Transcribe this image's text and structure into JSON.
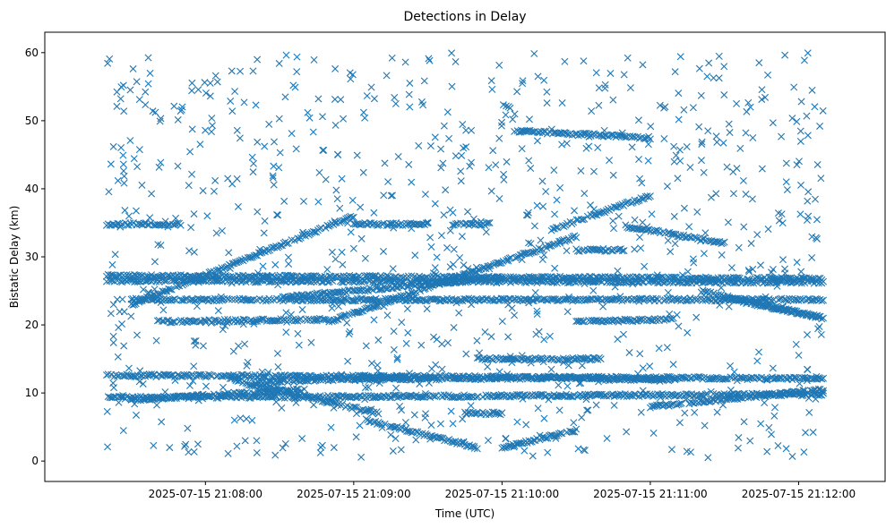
{
  "chart_data": {
    "type": "scatter",
    "title": "Detections in Delay",
    "xlabel": "Time (UTC)",
    "ylabel": "Bistatic Delay (km)",
    "marker": "x",
    "color": "#1f77b4",
    "grid": false,
    "legend": "none",
    "x_start": "2025-07-15 21:07:20",
    "x_end": "2025-07-15 21:12:10",
    "xlim": [
      "2025-07-15 21:06:55",
      "2025-07-15 21:12:35"
    ],
    "ylim": [
      -3,
      63
    ],
    "x_ticks": [
      {
        "label": "2025-07-15 21:08:00"
      },
      {
        "label": "2025-07-15 21:09:00"
      },
      {
        "label": "2025-07-15 21:10:00"
      },
      {
        "label": "2025-07-15 21:11:00"
      },
      {
        "label": "2025-07-15 21:12:00"
      }
    ],
    "y_ticks": [
      {
        "value": 0,
        "label": "0"
      },
      {
        "value": 10,
        "label": "10"
      },
      {
        "value": 20,
        "label": "20"
      },
      {
        "value": 30,
        "label": "30"
      },
      {
        "value": 40,
        "label": "40"
      },
      {
        "value": 50,
        "label": "50"
      },
      {
        "value": 60,
        "label": "60"
      }
    ],
    "series": [
      {
        "description": "track",
        "x": [
          "2025-07-15 21:07:20",
          "2025-07-15 21:12:10"
        ],
        "y": [
          27.2,
          26.8
        ]
      },
      {
        "description": "track",
        "x": [
          "2025-07-15 21:07:20",
          "2025-07-15 21:12:10"
        ],
        "y": [
          26.5,
          26.3
        ]
      },
      {
        "description": "track",
        "x": [
          "2025-07-15 21:07:20",
          "2025-07-15 21:12:10"
        ],
        "y": [
          12.6,
          12.1
        ]
      },
      {
        "description": "track",
        "x": [
          "2025-07-15 21:07:20",
          "2025-07-15 21:12:10"
        ],
        "y": [
          9.3,
          9.8
        ]
      },
      {
        "description": "track",
        "x": [
          "2025-07-15 21:07:30",
          "2025-07-15 21:09:00"
        ],
        "y": [
          23.0,
          36.0
        ]
      },
      {
        "description": "track",
        "x": [
          "2025-07-15 21:08:50",
          "2025-07-15 21:10:30"
        ],
        "y": [
          20.5,
          33.0
        ]
      },
      {
        "description": "track",
        "x": [
          "2025-07-15 21:08:10",
          "2025-07-15 21:09:10"
        ],
        "y": [
          12.0,
          7.0
        ]
      },
      {
        "description": "track",
        "x": [
          "2025-07-15 21:09:05",
          "2025-07-15 21:09:50"
        ],
        "y": [
          6.0,
          2.0
        ]
      },
      {
        "description": "track",
        "x": [
          "2025-07-15 21:10:00",
          "2025-07-15 21:10:30"
        ],
        "y": [
          2.0,
          4.5
        ]
      },
      {
        "description": "track",
        "x": [
          "2025-07-15 21:10:05",
          "2025-07-15 21:11:00"
        ],
        "y": [
          48.5,
          47.5
        ]
      },
      {
        "description": "track",
        "x": [
          "2025-07-15 21:10:20",
          "2025-07-15 21:11:00"
        ],
        "y": [
          34.0,
          39.0
        ]
      },
      {
        "description": "track",
        "x": [
          "2025-07-15 21:11:20",
          "2025-07-15 21:12:10"
        ],
        "y": [
          25.0,
          21.0
        ]
      },
      {
        "description": "track",
        "x": [
          "2025-07-15 21:08:30",
          "2025-07-15 21:10:00"
        ],
        "y": [
          24.0,
          27.0
        ]
      },
      {
        "description": "track",
        "x": [
          "2025-07-15 21:07:30",
          "2025-07-15 21:08:40"
        ],
        "y": [
          9.0,
          10.5
        ]
      },
      {
        "description": "track",
        "x": [
          "2025-07-15 21:08:20",
          "2025-07-15 21:09:20"
        ],
        "y": [
          11.5,
          12.5
        ]
      },
      {
        "description": "track",
        "x": [
          "2025-07-15 21:09:50",
          "2025-07-15 21:10:40"
        ],
        "y": [
          15.0,
          15.0
        ]
      },
      {
        "description": "track",
        "x": [
          "2025-07-15 21:09:45",
          "2025-07-15 21:10:00"
        ],
        "y": [
          7.0,
          7.0
        ]
      },
      {
        "description": "track",
        "x": [
          "2025-07-15 21:10:30",
          "2025-07-15 21:11:10"
        ],
        "y": [
          20.5,
          20.8
        ]
      },
      {
        "description": "track",
        "x": [
          "2025-07-15 21:07:40",
          "2025-07-15 21:08:50"
        ],
        "y": [
          20.5,
          20.8
        ]
      },
      {
        "description": "track",
        "x": [
          "2025-07-15 21:10:50",
          "2025-07-15 21:11:30"
        ],
        "y": [
          34.5,
          32.0
        ]
      },
      {
        "description": "track",
        "x": [
          "2025-07-15 21:07:20",
          "2025-07-15 21:07:50"
        ],
        "y": [
          34.8,
          34.8
        ]
      },
      {
        "description": "track",
        "x": [
          "2025-07-15 21:09:00",
          "2025-07-15 21:09:30"
        ],
        "y": [
          34.8,
          34.8
        ]
      },
      {
        "description": "track",
        "x": [
          "2025-07-15 21:09:40",
          "2025-07-15 21:09:55"
        ],
        "y": [
          34.8,
          34.8
        ]
      },
      {
        "description": "track",
        "x": [
          "2025-07-15 21:10:30",
          "2025-07-15 21:10:50"
        ],
        "y": [
          31.0,
          31.0
        ]
      },
      {
        "description": "track",
        "x": [
          "2025-07-15 21:11:00",
          "2025-07-15 21:12:10"
        ],
        "y": [
          8.0,
          10.5
        ]
      },
      {
        "description": "track",
        "x": [
          "2025-07-15 21:11:30",
          "2025-07-15 21:12:10"
        ],
        "y": [
          24.0,
          21.0
        ]
      },
      {
        "description": "track",
        "x": [
          "2025-07-15 21:07:30",
          "2025-07-15 21:12:10"
        ],
        "y": [
          23.7,
          23.7
        ]
      },
      {
        "description": "track",
        "x": [
          "2025-07-15 21:09:00",
          "2025-07-15 21:10:40"
        ],
        "y": [
          12.0,
          12.3
        ]
      },
      {
        "description": "track",
        "x": [
          "2025-07-15 21:10:40",
          "2025-07-15 21:11:10"
        ],
        "y": [
          12.0,
          12.0
        ]
      }
    ],
    "scatter_noise": {
      "description": "random detections",
      "x_range": [
        "2025-07-15 21:07:20",
        "2025-07-15 21:12:10"
      ],
      "y_range": [
        0.5,
        60
      ]
    }
  }
}
